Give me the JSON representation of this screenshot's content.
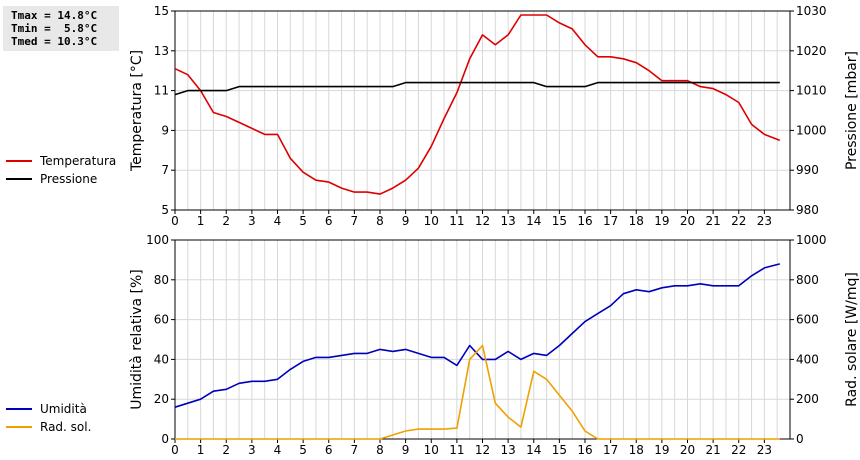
{
  "stats": {
    "tmax": "Tmax = 14.8°C",
    "tmin": "Tmin =  5.8°C",
    "tmed": "Tmed = 10.3°C"
  },
  "legend_top": [
    {
      "label": "Temperatura",
      "color": "#dd0000"
    },
    {
      "label": "Pressione",
      "color": "#000000"
    }
  ],
  "legend_bottom": [
    {
      "label": "Umidità",
      "color": "#0000bb"
    },
    {
      "label": "Rad. sol.",
      "color": "#f0a000"
    }
  ],
  "chart_data": [
    {
      "type": "line",
      "xlim": [
        0,
        24
      ],
      "x_ticks": [
        "0",
        "1",
        "2",
        "3",
        "4",
        "5",
        "6",
        "7",
        "8",
        "9",
        "10",
        "11",
        "12",
        "13",
        "14",
        "15",
        "16",
        "17",
        "18",
        "19",
        "20",
        "21",
        "22",
        "23"
      ],
      "grid": true,
      "ylabel": "Temperatura [°C]",
      "ylim": [
        5,
        15
      ],
      "y_ticks": [
        "5",
        "7",
        "9",
        "11",
        "13",
        "15"
      ],
      "y2label": "Pressione [mbar]",
      "y2lim": [
        980,
        1030
      ],
      "y2_ticks": [
        "980",
        "990",
        "1000",
        "1010",
        "1020",
        "1030"
      ],
      "series": [
        {
          "name": "Temperatura",
          "axis": "left",
          "color": "#dd0000",
          "x": [
            0,
            0.5,
            1,
            1.5,
            2,
            2.5,
            3,
            3.5,
            4,
            4.5,
            5,
            5.5,
            6,
            6.5,
            7,
            7.5,
            8,
            8.5,
            9,
            9.5,
            10,
            10.5,
            11,
            11.5,
            12,
            12.5,
            13,
            13.5,
            14,
            14.5,
            15,
            15.5,
            16,
            16.5,
            17,
            17.5,
            18,
            18.5,
            19,
            19.5,
            20,
            20.5,
            21,
            21.5,
            22,
            22.5,
            23,
            23.6
          ],
          "values": [
            12.1,
            11.8,
            11.0,
            9.9,
            9.7,
            9.4,
            9.1,
            8.8,
            8.8,
            7.6,
            6.9,
            6.5,
            6.4,
            6.1,
            5.9,
            5.9,
            5.8,
            6.1,
            6.5,
            7.1,
            8.2,
            9.6,
            10.9,
            12.6,
            13.8,
            13.3,
            13.8,
            14.8,
            14.8,
            14.8,
            14.4,
            14.1,
            13.3,
            12.7,
            12.7,
            12.6,
            12.4,
            12.0,
            11.5,
            11.5,
            11.5,
            11.2,
            11.1,
            10.8,
            10.4,
            9.3,
            8.8,
            8.5
          ]
        },
        {
          "name": "Pressione",
          "axis": "right",
          "color": "#000000",
          "x": [
            0,
            0.5,
            1,
            1.5,
            2,
            2.5,
            3,
            4,
            5,
            6,
            7,
            8,
            8.5,
            9,
            10,
            11,
            12,
            13,
            14,
            14.5,
            15,
            16,
            16.5,
            17,
            18,
            19,
            20,
            21,
            22,
            23,
            23.6
          ],
          "values": [
            1009,
            1010,
            1010,
            1010,
            1010,
            1011,
            1011,
            1011,
            1011,
            1011,
            1011,
            1011,
            1011,
            1012,
            1012,
            1012,
            1012,
            1012,
            1012,
            1011,
            1011,
            1011,
            1012,
            1012,
            1012,
            1012,
            1012,
            1012,
            1012,
            1012,
            1012
          ]
        }
      ]
    },
    {
      "type": "line",
      "xlim": [
        0,
        24
      ],
      "x_ticks": [
        "0",
        "1",
        "2",
        "3",
        "4",
        "5",
        "6",
        "7",
        "8",
        "9",
        "10",
        "11",
        "12",
        "13",
        "14",
        "15",
        "16",
        "17",
        "18",
        "19",
        "20",
        "21",
        "22",
        "23"
      ],
      "grid": true,
      "ylabel": "Umidità relativa [%]",
      "ylim": [
        0,
        100
      ],
      "y_ticks": [
        "0",
        "20",
        "40",
        "60",
        "80",
        "100"
      ],
      "y2label": "Rad. solare [W/mq]",
      "y2lim": [
        0,
        1000
      ],
      "y2_ticks": [
        "0",
        "200",
        "400",
        "600",
        "800",
        "1000"
      ],
      "series": [
        {
          "name": "Umidità",
          "axis": "left",
          "color": "#0000bb",
          "x": [
            0,
            0.5,
            1,
            1.5,
            2,
            2.5,
            3,
            3.5,
            4,
            4.5,
            5,
            5.5,
            6,
            6.5,
            7,
            7.5,
            8,
            8.5,
            9,
            9.5,
            10,
            10.5,
            11,
            11.5,
            12,
            12.5,
            13,
            13.5,
            14,
            14.5,
            15,
            15.5,
            16,
            16.5,
            17,
            17.5,
            18,
            18.5,
            19,
            19.5,
            20,
            20.5,
            21,
            21.5,
            22,
            22.5,
            23,
            23.6
          ],
          "values": [
            16,
            18,
            20,
            24,
            25,
            28,
            29,
            29,
            30,
            35,
            39,
            41,
            41,
            42,
            43,
            43,
            45,
            44,
            45,
            43,
            41,
            41,
            37,
            47,
            40,
            40,
            44,
            40,
            43,
            42,
            47,
            53,
            59,
            63,
            67,
            73,
            75,
            74,
            76,
            77,
            77,
            78,
            77,
            77,
            77,
            82,
            86,
            88
          ]
        },
        {
          "name": "Rad. sol.",
          "axis": "right",
          "color": "#f0a000",
          "x": [
            0,
            1,
            2,
            3,
            4,
            5,
            6,
            7,
            8,
            8.5,
            9,
            9.5,
            10,
            10.5,
            11,
            11.5,
            12,
            12.5,
            13,
            13.5,
            14,
            14.5,
            15,
            15.5,
            16,
            16.5,
            17,
            18,
            19,
            20,
            21,
            22,
            23,
            23.6
          ],
          "values": [
            0,
            0,
            0,
            0,
            0,
            0,
            0,
            0,
            0,
            20,
            40,
            50,
            50,
            50,
            55,
            400,
            470,
            180,
            110,
            60,
            340,
            300,
            220,
            140,
            40,
            0,
            0,
            0,
            0,
            0,
            0,
            0,
            0,
            0
          ]
        }
      ]
    }
  ]
}
